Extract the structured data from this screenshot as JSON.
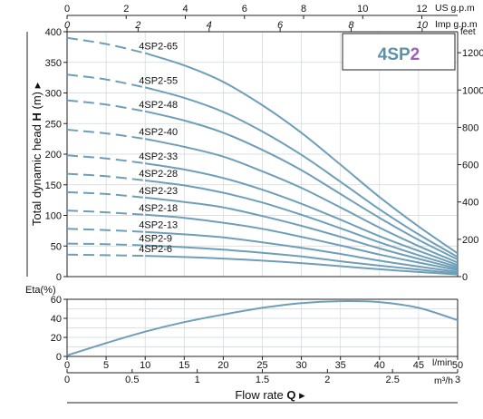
{
  "chart_data": [
    {
      "type": "line",
      "title": "4SP2",
      "ylabel": "Total dynamic head",
      "ylabel_symbol": "H",
      "ylabel_unit": "(m)",
      "ylabel_right": "feet",
      "xlabel_top_us": "US g.p.m",
      "xlabel_top_imp": "Imp g.p.m",
      "xlim": [
        0,
        50
      ],
      "ylim": [
        0,
        400
      ],
      "y_ticks": [
        0,
        50,
        100,
        150,
        200,
        250,
        300,
        350,
        400
      ],
      "feet_ticks": [
        0,
        200,
        400,
        600,
        800,
        1000,
        1200
      ],
      "us_gpm_ticks": [
        0,
        2,
        4,
        6,
        8,
        10,
        12
      ],
      "imp_gpm_ticks": [
        0,
        2,
        4,
        6,
        8,
        10
      ],
      "grid": true,
      "colors": {
        "curve": "#6f9fb8",
        "title": "#5a91ad",
        "title_accent": "#9b62b5",
        "grid": "#cfd6dc"
      },
      "series": [
        {
          "name": "4SP2-65",
          "x": [
            0,
            5,
            10,
            15,
            20,
            25,
            30,
            35,
            40,
            45,
            50
          ],
          "values": [
            390,
            380,
            365,
            345,
            318,
            280,
            235,
            183,
            130,
            82,
            38
          ]
        },
        {
          "name": "4SP2-55",
          "x": [
            0,
            5,
            10,
            15,
            20,
            25,
            30,
            35,
            40,
            45,
            50
          ],
          "values": [
            330,
            322,
            309,
            292,
            269,
            237,
            199,
            155,
            110,
            69,
            32
          ]
        },
        {
          "name": "4SP2-48",
          "x": [
            0,
            5,
            10,
            15,
            20,
            25,
            30,
            35,
            40,
            45,
            50
          ],
          "values": [
            288,
            281,
            270,
            255,
            235,
            207,
            174,
            135,
            96,
            60,
            28
          ]
        },
        {
          "name": "4SP2-40",
          "x": [
            0,
            5,
            10,
            15,
            20,
            25,
            30,
            35,
            40,
            45,
            50
          ],
          "values": [
            240,
            234,
            225,
            212,
            196,
            172,
            145,
            113,
            80,
            50,
            23
          ]
        },
        {
          "name": "4SP2-33",
          "x": [
            0,
            5,
            10,
            15,
            20,
            25,
            30,
            35,
            40,
            45,
            50
          ],
          "values": [
            198,
            193,
            185,
            175,
            161,
            142,
            119,
            93,
            66,
            42,
            19
          ]
        },
        {
          "name": "4SP2-28",
          "x": [
            0,
            5,
            10,
            15,
            20,
            25,
            30,
            35,
            40,
            45,
            50
          ],
          "values": [
            168,
            164,
            157,
            149,
            137,
            121,
            101,
            79,
            56,
            35,
            16
          ]
        },
        {
          "name": "4SP2-23",
          "x": [
            0,
            5,
            10,
            15,
            20,
            25,
            30,
            35,
            40,
            45,
            50
          ],
          "values": [
            138,
            135,
            129,
            122,
            113,
            99,
            83,
            65,
            46,
            29,
            13
          ]
        },
        {
          "name": "4SP2-18",
          "x": [
            0,
            5,
            10,
            15,
            20,
            25,
            30,
            35,
            40,
            45,
            50
          ],
          "values": [
            108,
            105,
            101,
            96,
            88,
            78,
            65,
            51,
            36,
            23,
            10.5
          ]
        },
        {
          "name": "4SP2-13",
          "x": [
            0,
            5,
            10,
            15,
            20,
            25,
            30,
            35,
            40,
            45,
            50
          ],
          "values": [
            78,
            76,
            73,
            69,
            64,
            56,
            47,
            37,
            26,
            16.5,
            7.5
          ]
        },
        {
          "name": "4SP2-9",
          "x": [
            0,
            5,
            10,
            15,
            20,
            25,
            30,
            35,
            40,
            45,
            50
          ],
          "values": [
            54,
            53,
            51,
            48,
            44,
            39,
            33,
            25,
            18,
            11.5,
            5.2
          ]
        },
        {
          "name": "4SP2-6",
          "x": [
            0,
            5,
            10,
            15,
            20,
            25,
            30,
            35,
            40,
            45,
            50
          ],
          "values": [
            36,
            35,
            34,
            32,
            29.5,
            26,
            22,
            17,
            12,
            7.6,
            3.5
          ]
        }
      ]
    },
    {
      "type": "line",
      "ylabel": "Eta(%)",
      "xlabel": "Flow rate",
      "xlabel_symbol": "Q",
      "xunit_lmin": "l/min",
      "xunit_m3h": "m³/h",
      "xlim": [
        0,
        50
      ],
      "ylim": [
        0,
        60
      ],
      "y_ticks": [
        0,
        20,
        40,
        60
      ],
      "x_ticks": [
        0,
        5,
        10,
        15,
        20,
        25,
        30,
        35,
        40,
        45,
        50
      ],
      "m3h_ticks": [
        "0",
        "0.5",
        "1",
        "1.5",
        "2",
        "2.5",
        "3"
      ],
      "grid": true,
      "series": [
        {
          "x": [
            0,
            5,
            10,
            15,
            20,
            25,
            30,
            35,
            40,
            45,
            50
          ],
          "values": [
            1,
            14,
            26,
            36,
            44,
            51,
            56,
            58,
            57,
            51,
            38
          ]
        }
      ]
    }
  ]
}
